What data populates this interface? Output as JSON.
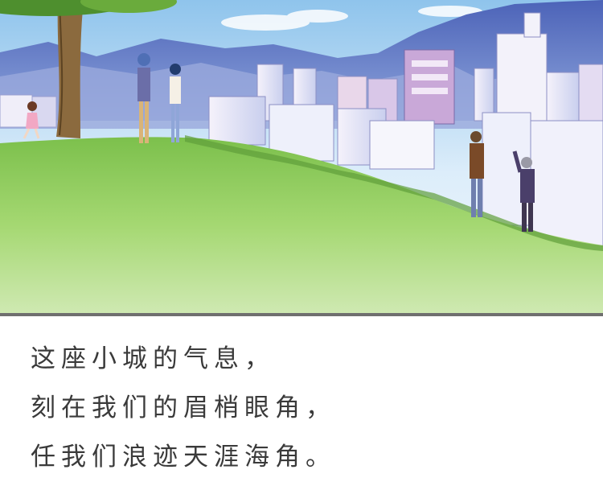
{
  "palette": {
    "sky_top": "#8fc4ec",
    "sky_bottom": "#f3f8fd",
    "mountain": "#5f78c8",
    "grass": "#9dd16a",
    "divider": "#6f6f6f",
    "caption_text": "#3a3a3a"
  },
  "scene": {
    "illustration_name": "hillside-city-panel",
    "figures": [
      "couple-under-tree",
      "running-child",
      "walking-men"
    ]
  },
  "caption": {
    "lines": [
      {
        "text": "这座小城的气息，"
      },
      {
        "text": "刻在我们的眉梢眼角，"
      },
      {
        "text": "任我们浪迹天涯海角。"
      }
    ]
  }
}
